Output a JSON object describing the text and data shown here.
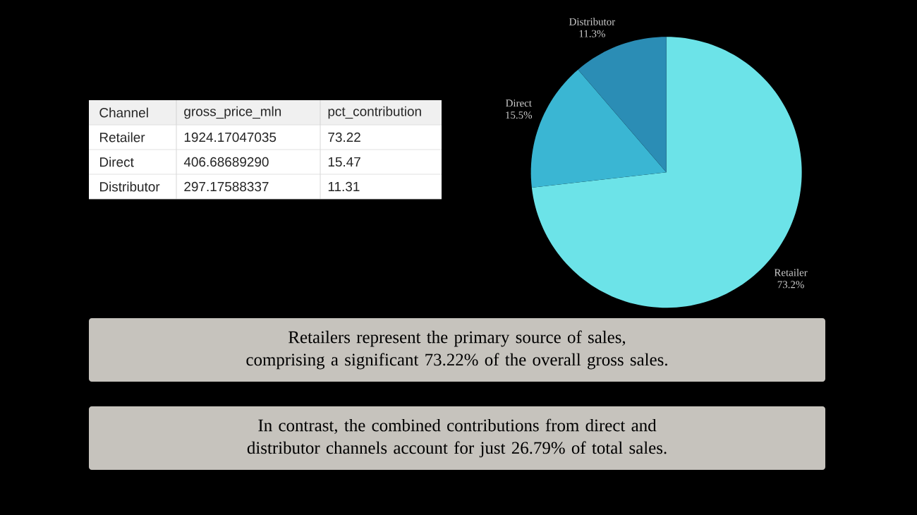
{
  "chart_data": [
    {
      "type": "other",
      "annotations": [
        "Channel",
        "gross_price_mln",
        "pct_contribution",
        "Retailer",
        "1924.17047035",
        "73.22",
        "Direct",
        "406.68689290",
        "15.47",
        "Distributor",
        "297.17588337",
        "11.31"
      ]
    },
    {
      "type": "pie",
      "categories": [
        "Retailer",
        "Direct",
        "Distributor"
      ],
      "values": [
        73.2,
        15.5,
        11.3
      ],
      "colors": [
        "#6ce3e8",
        "#3ab6d3",
        "#2b8db5"
      ],
      "value_labels": [
        "73.2%",
        "15.5%",
        "11.3%"
      ],
      "annotations": [
        "Retailers represent the primary source of sales, comprising a significant 73.22% of the overall gross sales.",
        "In contrast, the combined contributions from direct and distributor channels account for just 26.79% of total sales."
      ]
    }
  ]
}
